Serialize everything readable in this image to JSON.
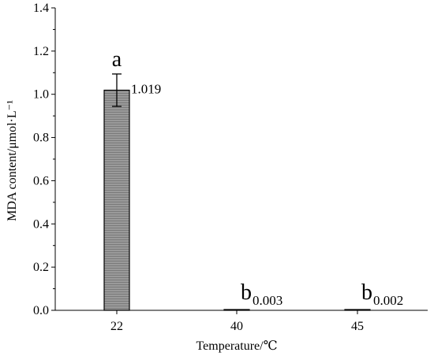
{
  "chart_data": {
    "type": "bar",
    "categories": [
      "22",
      "40",
      "45"
    ],
    "values": [
      1.019,
      0.003,
      0.002
    ],
    "errors": [
      0.075,
      0,
      0
    ],
    "value_labels": [
      "1.019",
      "0.003",
      "0.002"
    ],
    "significance_letters": [
      "a",
      "b",
      "b"
    ],
    "xlabel": "Temperature/℃",
    "ylabel": "MDA content/μmol·L⁻¹",
    "ylim": [
      0,
      1.4
    ],
    "yticks": [
      "0.0",
      "0.2",
      "0.4",
      "0.6",
      "0.8",
      "1.0",
      "1.2",
      "1.4"
    ],
    "yticks_values": [
      0,
      0.2,
      0.4,
      0.6,
      0.8,
      1.0,
      1.2,
      1.4
    ],
    "bar_color": "#8f8f8f",
    "grid": false
  }
}
